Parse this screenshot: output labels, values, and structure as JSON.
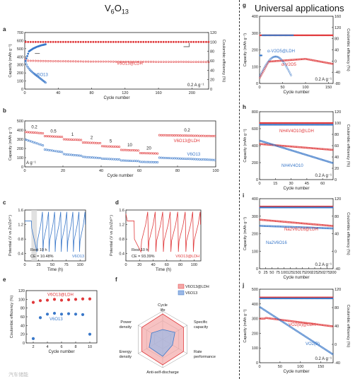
{
  "headers": {
    "left": "V6O13",
    "right": "Universal applications"
  },
  "colors": {
    "red": "#e0393b",
    "blue": "#3a78c9",
    "red_fill": "#f4a8a8",
    "blue_fill": "#9bb8e6",
    "gray_band": "#d9d9d9"
  },
  "watermark": "汽车储能",
  "chart_data": [
    {
      "panel": "a",
      "type": "scatter",
      "xlabel": "Cycle number",
      "ylabel": "Capacity (mAh g⁻¹)",
      "y2label": "Coulombic efficiency (%)",
      "xlim": [
        0,
        220
      ],
      "ylim": [
        0,
        700
      ],
      "y2lim": [
        0,
        120
      ],
      "xticks": [
        0,
        40,
        80,
        120,
        160,
        200
      ],
      "yticks": [
        0,
        100,
        200,
        300,
        400,
        500,
        600,
        700
      ],
      "y2ticks": [
        0,
        20,
        40,
        60,
        80,
        100,
        120
      ],
      "annotation": "0.2 A g⁻¹",
      "series": [
        {
          "name": "V6O13@LDH",
          "kind": "capacity",
          "color": "red",
          "x": [
            1,
            2,
            3,
            5,
            10,
            20,
            40,
            60,
            80,
            100,
            120,
            140,
            160,
            180,
            200,
            220
          ],
          "y": [
            370,
            360,
            355,
            350,
            350,
            348,
            345,
            343,
            340,
            340,
            338,
            338,
            337,
            337,
            336,
            335
          ]
        },
        {
          "name": "V6O13@LDH CE",
          "kind": "ce",
          "color": "red",
          "x": [
            1,
            220
          ],
          "y": [
            100,
            100
          ]
        },
        {
          "name": "V6O13",
          "kind": "capacity",
          "color": "blue",
          "x": [
            1,
            3,
            6,
            10,
            15,
            20,
            25
          ],
          "y": [
            330,
            280,
            240,
            200,
            160,
            120,
            80
          ]
        },
        {
          "name": "V6O13 CE",
          "kind": "ce",
          "color": "blue",
          "x": [
            1,
            5,
            10,
            15,
            20,
            25
          ],
          "y": [
            60,
            80,
            86,
            90,
            93,
            95
          ]
        }
      ],
      "labels": [
        "V6O13@LDH",
        "V6O13"
      ]
    },
    {
      "panel": "b",
      "type": "scatter",
      "xlabel": "Cycle number",
      "ylabel": "Capacity (mAh g⁻¹)",
      "xlim": [
        0,
        100
      ],
      "ylim": [
        0,
        500
      ],
      "xticks": [
        0,
        20,
        40,
        60,
        80,
        100
      ],
      "yticks": [
        0,
        100,
        200,
        300,
        400,
        500
      ],
      "annotation": "A g⁻¹",
      "rate_labels": [
        "0.2",
        "0.5",
        "1",
        "2",
        "5",
        "10",
        "20",
        "0.2"
      ],
      "rate_positions": [
        5,
        15,
        25,
        35,
        45,
        55,
        65,
        85
      ],
      "series": [
        {
          "name": "V6O13@LDH",
          "color": "red",
          "segments": [
            [
              0,
              10,
              380,
              365
            ],
            [
              10,
              20,
              335,
              325
            ],
            [
              20,
              30,
              300,
              292
            ],
            [
              30,
              40,
              265,
              258
            ],
            [
              40,
              50,
              225,
              218
            ],
            [
              50,
              60,
              185,
              178
            ],
            [
              60,
              70,
              150,
              145
            ],
            [
              70,
              100,
              345,
              335
            ]
          ]
        },
        {
          "name": "V6O13",
          "color": "blue",
          "segments": [
            [
              0,
              10,
              300,
              230
            ],
            [
              10,
              20,
              190,
              160
            ],
            [
              20,
              30,
              140,
              120
            ],
            [
              30,
              40,
              110,
              95
            ],
            [
              40,
              50,
              90,
              80
            ],
            [
              50,
              60,
              70,
              62
            ],
            [
              60,
              70,
              55,
              50
            ],
            [
              70,
              100,
              100,
              75
            ]
          ]
        }
      ],
      "labels": [
        "V6O13@LDH",
        "V6O13"
      ]
    },
    {
      "panel": "c",
      "type": "line",
      "xlabel": "Time (h)",
      "ylabel": "Potential (V vs Zn/Zn²⁺)",
      "xlim": [
        0,
        110
      ],
      "ylim": [
        0.2,
        1.6
      ],
      "xticks": [
        0,
        25,
        50,
        75,
        100
      ],
      "yticks": [
        0.4,
        0.8,
        1.2,
        1.6
      ],
      "annotations": [
        "Rest 10 h",
        "CE = 10.48%",
        "V6O13"
      ]
    },
    {
      "panel": "d",
      "type": "line",
      "xlabel": "Time (h)",
      "ylabel": "Potential (V vs Zn/Zn²⁺)",
      "xlim": [
        0,
        110
      ],
      "ylim": [
        0.2,
        1.6
      ],
      "xticks": [
        0,
        20,
        40,
        60,
        80,
        100
      ],
      "yticks": [
        0.4,
        0.8,
        1.2,
        1.6
      ],
      "annotations": [
        "Rest 10 h",
        "CE = 93.39%",
        "V6O13@LDH"
      ]
    },
    {
      "panel": "e",
      "type": "scatter",
      "xlabel": "Cycle number",
      "ylabel": "Coulombic efficiency (%)",
      "xlim": [
        1,
        11
      ],
      "ylim": [
        0,
        120
      ],
      "xticks": [
        2,
        4,
        6,
        8,
        10
      ],
      "yticks": [
        0,
        20,
        40,
        60,
        80,
        100,
        120
      ],
      "series": [
        {
          "name": "V6O13@LDH",
          "color": "red",
          "x": [
            2,
            3,
            4,
            5,
            6,
            7,
            8,
            9,
            10
          ],
          "y": [
            93,
            97,
            98,
            100,
            98,
            99,
            100,
            101,
            101
          ]
        },
        {
          "name": "V6O13",
          "color": "blue",
          "x": [
            2,
            3,
            4,
            5,
            6,
            7,
            8,
            9,
            10
          ],
          "y": [
            10,
            58,
            66,
            68,
            66,
            67,
            66,
            65,
            20
          ]
        }
      ],
      "labels": [
        "V6O13@LDH",
        "V6O13"
      ]
    },
    {
      "panel": "f",
      "type": "radar",
      "axes": [
        "Cycle life",
        "Specific capacity",
        "Rate performance",
        "Anti-self-discharge",
        "Energy density",
        "Power density"
      ],
      "series": [
        {
          "name": "V6O13@LDH",
          "color": "red",
          "values": [
            0.9,
            0.85,
            0.85,
            0.9,
            0.85,
            0.85
          ]
        },
        {
          "name": "V6O13",
          "color": "blue",
          "values": [
            0.35,
            0.5,
            0.4,
            0.6,
            0.55,
            0.45
          ]
        }
      ]
    },
    {
      "panel": "g",
      "type": "scatter",
      "xlabel": "Cycle number",
      "ylabel": "Capacity (mAh g⁻¹)",
      "y2label": "Coulombic efficiency (%)",
      "xlim": [
        0,
        160
      ],
      "ylim": [
        0,
        400
      ],
      "y2lim": [
        -80,
        160
      ],
      "xticks": [
        0,
        50,
        100,
        150
      ],
      "yticks": [
        0,
        100,
        200,
        300,
        400
      ],
      "y2ticks": [
        -80,
        -40,
        0,
        40,
        80,
        120,
        160
      ],
      "annotation": "0.2 A g⁻¹",
      "labels": [
        "α-V2O5",
        "α-V2O5@LDH"
      ]
    },
    {
      "panel": "h",
      "type": "scatter",
      "xlabel": "Cycle number",
      "ylabel": "Capacity (mAh g⁻¹)",
      "y2label": "Coulombic efficiency (%)",
      "xlim": [
        0,
        70
      ],
      "ylim": [
        0,
        800
      ],
      "y2lim": [
        0,
        120
      ],
      "xticks": [
        0,
        15,
        30,
        45,
        60
      ],
      "yticks": [
        0,
        200,
        400,
        600,
        800
      ],
      "y2ticks": [
        0,
        20,
        40,
        60,
        80,
        100,
        120
      ],
      "annotation": "0.2 A g⁻¹",
      "labels": [
        "NH4V4O10@LDH",
        "NH4V4O10"
      ]
    },
    {
      "panel": "i",
      "type": "scatter",
      "xlabel": "Cycle number",
      "ylabel": "Capacity (mAh g⁻¹)",
      "y2label": "Coulombic efficiency (%)",
      "xlim": [
        0,
        300
      ],
      "ylim": [
        0,
        400
      ],
      "y2lim": [
        -40,
        120
      ],
      "xticks": [
        0,
        25,
        50,
        75,
        100,
        125,
        150,
        175,
        200,
        225,
        250,
        275,
        300
      ],
      "yticks": [
        0,
        100,
        200,
        300,
        400
      ],
      "y2ticks": [
        -40,
        0,
        40,
        80,
        120
      ],
      "annotation": "0.2 A g⁻¹",
      "labels": [
        "Na2V6O16@LDH",
        "Na2V6O16"
      ]
    },
    {
      "panel": "j",
      "type": "scatter",
      "xlabel": "Cycle number",
      "ylabel": "Capacity (mAh g⁻¹)",
      "y2label": "Coulombic efficiency (%)",
      "xlim": [
        0,
        180
      ],
      "ylim": [
        0,
        500
      ],
      "y2lim": [
        -40,
        120
      ],
      "xticks": [
        0,
        50,
        100,
        150
      ],
      "yticks": [
        0,
        100,
        200,
        300,
        400,
        500
      ],
      "y2ticks": [
        -40,
        0,
        40,
        80,
        120
      ],
      "annotation": "0.2 A g⁻¹",
      "labels": [
        "VO2(B)@LDH",
        "VO2(B)"
      ]
    }
  ]
}
